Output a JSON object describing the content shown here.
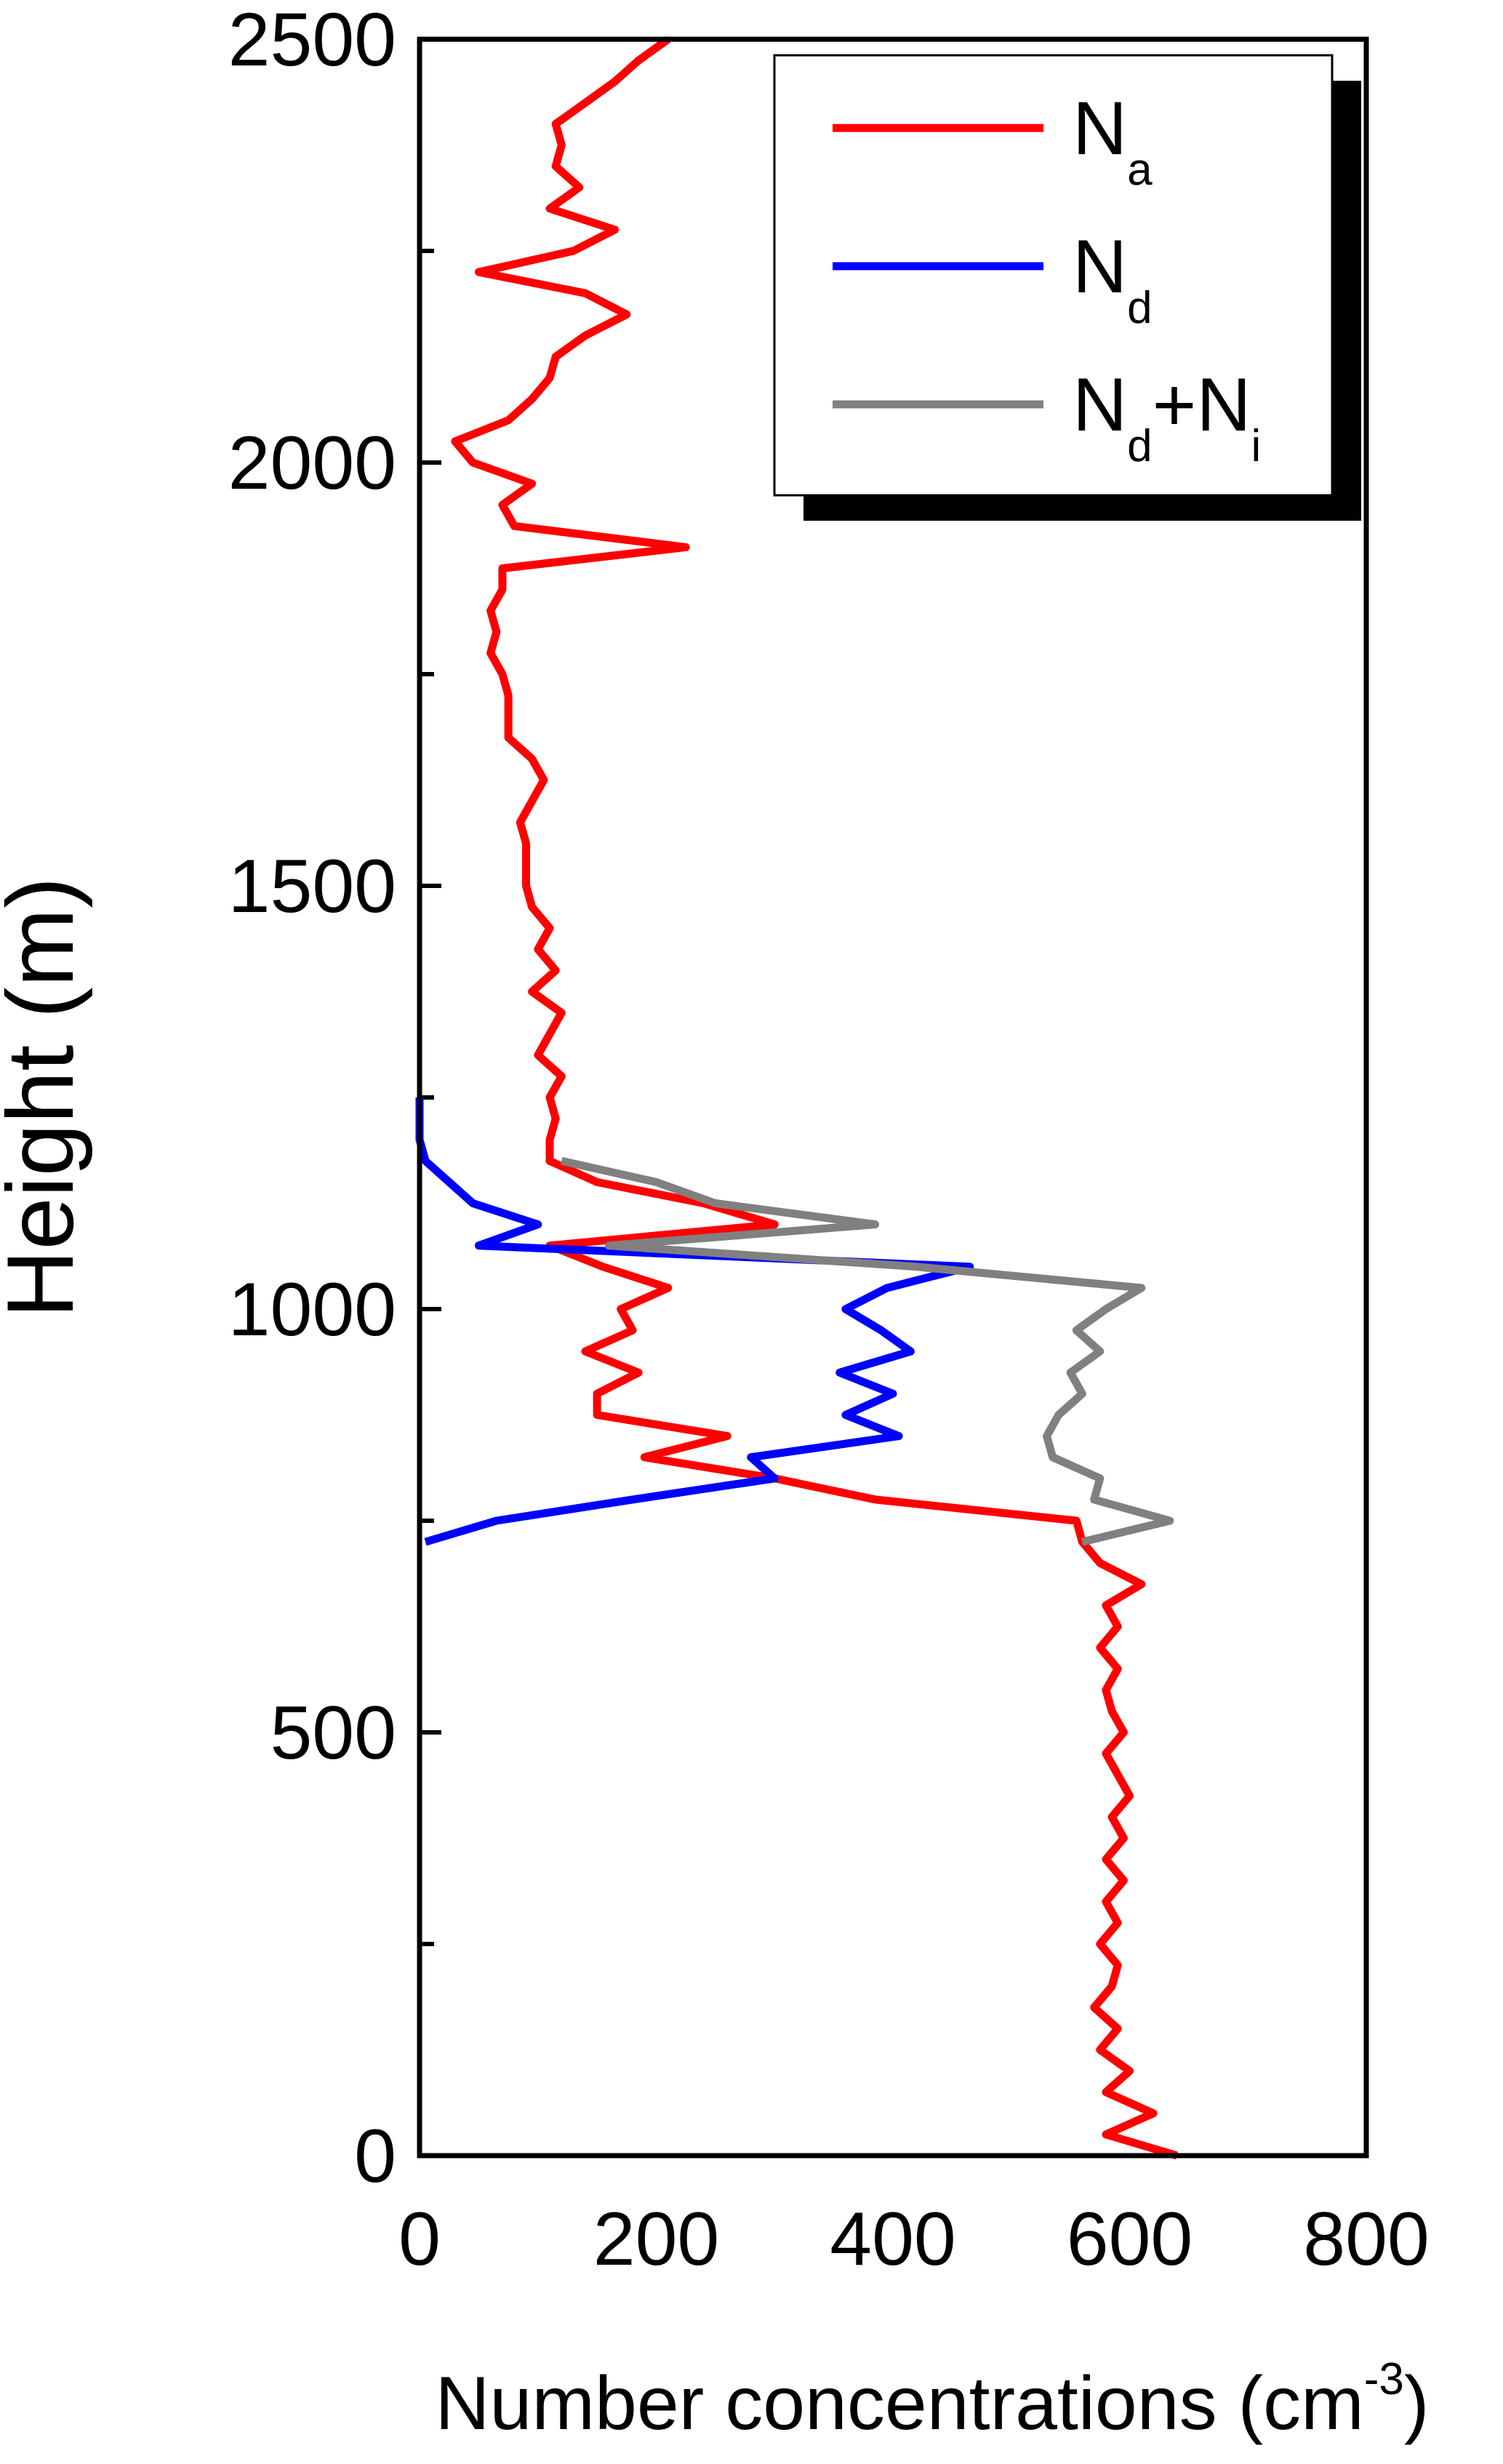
{
  "chart_data": {
    "type": "line",
    "xlabel": [
      "Number concentrations (cm",
      "-3",
      ")"
    ],
    "ylabel": "Height (m)",
    "xlim": [
      0,
      800
    ],
    "xticks": [
      0,
      200,
      400,
      600,
      800
    ],
    "ylim": [
      0,
      2500
    ],
    "yticks": [
      0,
      500,
      1000,
      1500,
      2000,
      2500
    ],
    "yminor_ticks": [
      250,
      750,
      1250,
      1750,
      2250
    ],
    "grid": false,
    "legend": "upper right",
    "y": [
      0,
      25,
      50,
      75,
      100,
      125,
      150,
      175,
      200,
      225,
      250,
      275,
      300,
      325,
      350,
      375,
      400,
      425,
      450,
      475,
      500,
      525,
      550,
      575,
      600,
      625,
      650,
      675,
      700,
      725,
      750,
      775,
      800,
      825,
      850,
      875,
      900,
      925,
      950,
      975,
      1000,
      1025,
      1050,
      1075,
      1100,
      1125,
      1150,
      1175,
      1200,
      1225,
      1250,
      1275,
      1300,
      1325,
      1350,
      1375,
      1400,
      1425,
      1450,
      1475,
      1500,
      1525,
      1550,
      1575,
      1600,
      1625,
      1650,
      1675,
      1700,
      1725,
      1750,
      1775,
      1800,
      1825,
      1850,
      1875,
      1900,
      1925,
      1950,
      1975,
      2000,
      2025,
      2050,
      2075,
      2100,
      2125,
      2150,
      2175,
      2200,
      2225,
      2250,
      2275,
      2300,
      2325,
      2350,
      2375,
      2400,
      2425,
      2450,
      2475,
      2500
    ],
    "series": [
      {
        "name": [
          "N",
          "a"
        ],
        "color": "#ff0000",
        "values": [
          640,
          580,
          620,
          580,
          600,
          575,
          590,
          570,
          585,
          590,
          575,
          590,
          580,
          595,
          580,
          595,
          585,
          600,
          590,
          580,
          595,
          585,
          580,
          590,
          575,
          590,
          580,
          610,
          575,
          560,
          555,
          385,
          300,
          190,
          260,
          150,
          150,
          185,
          140,
          180,
          170,
          210,
          155,
          110,
          300,
          240,
          150,
          110,
          110,
          115,
          110,
          120,
          100,
          110,
          120,
          95,
          115,
          100,
          110,
          95,
          90,
          90,
          90,
          85,
          95,
          105,
          95,
          75,
          75,
          75,
          70,
          60,
          65,
          60,
          70,
          70,
          225,
          80,
          70,
          95,
          45,
          30,
          75,
          95,
          110,
          115,
          140,
          175,
          140,
          50,
          130,
          165,
          110,
          135,
          115,
          120,
          115,
          140,
          165,
          185,
          210
        ]
      },
      {
        "name": [
          "N",
          "d"
        ],
        "color": "#0000ff",
        "values": [
          null,
          null,
          null,
          null,
          null,
          null,
          null,
          null,
          null,
          null,
          null,
          null,
          null,
          null,
          null,
          null,
          null,
          null,
          null,
          null,
          null,
          null,
          null,
          null,
          null,
          null,
          null,
          null,
          null,
          5,
          65,
          180,
          300,
          280,
          405,
          360,
          400,
          355,
          415,
          390,
          360,
          395,
          465,
          50,
          100,
          45,
          25,
          5,
          0,
          0,
          0,
          null,
          null,
          null,
          null,
          null,
          null,
          null,
          null,
          null,
          null,
          null,
          null,
          null,
          null,
          null,
          null,
          null,
          null,
          null,
          null,
          null,
          null,
          null,
          null,
          null,
          null,
          null,
          null,
          null,
          null,
          null,
          null,
          null,
          null,
          null,
          null,
          null,
          null,
          null,
          null,
          null,
          null,
          null,
          null,
          null,
          null,
          null,
          null,
          null,
          null
        ]
      },
      {
        "name": [
          "N",
          "d",
          "+N",
          "i"
        ],
        "color": "#808080",
        "values": [
          null,
          null,
          null,
          null,
          null,
          null,
          null,
          null,
          null,
          null,
          null,
          null,
          null,
          null,
          null,
          null,
          null,
          null,
          null,
          null,
          null,
          null,
          null,
          null,
          null,
          null,
          null,
          null,
          null,
          560,
          634,
          570,
          575,
          535,
          530,
          540,
          560,
          550,
          575,
          555,
          580,
          610,
          420,
          160,
          385,
          250,
          200,
          120,
          null,
          null,
          null,
          null,
          null,
          null,
          null,
          null,
          null,
          null,
          null,
          null,
          null,
          null,
          null,
          null,
          null,
          null,
          null,
          null,
          null,
          null,
          null,
          null,
          null,
          null,
          null,
          null,
          null,
          null,
          null,
          null,
          null,
          null,
          null,
          null,
          null,
          null,
          null,
          null,
          null,
          null,
          null,
          null,
          null,
          null,
          null,
          null,
          null,
          null,
          null,
          null,
          null
        ]
      }
    ]
  }
}
